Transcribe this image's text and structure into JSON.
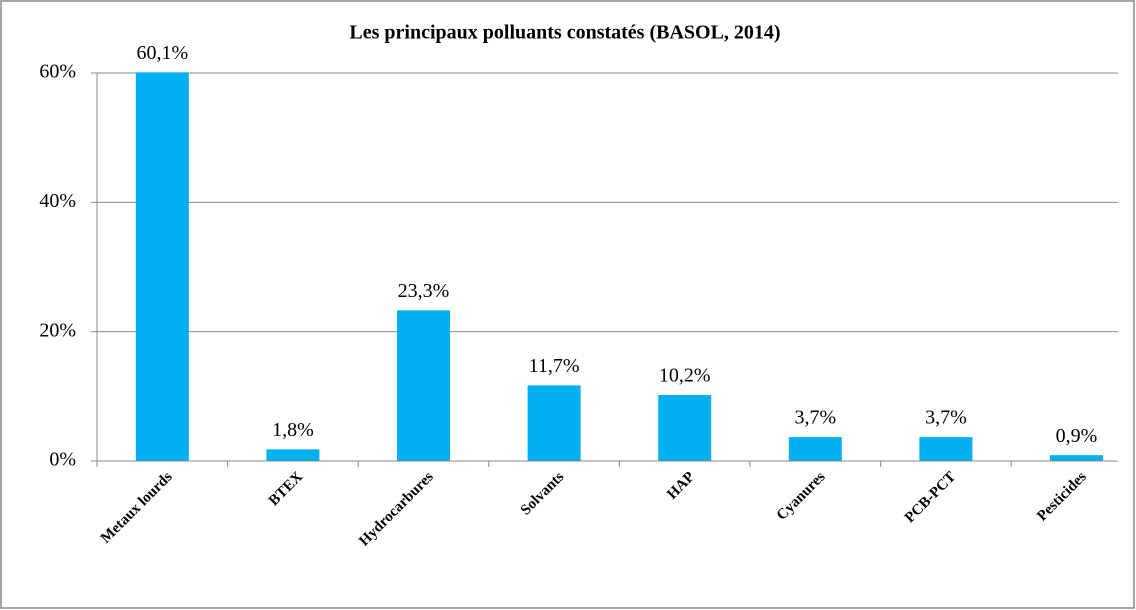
{
  "chart_data": {
    "type": "bar",
    "title": "Les principaux polluants constatés (BASOL, 2014)",
    "categories": [
      "Metaux lourds",
      "BTEX",
      "Hydrocarbures",
      "Solvants",
      "HAP",
      "Cyanures",
      "PCB-PCT",
      "Pesticides"
    ],
    "values": [
      60.1,
      1.8,
      23.3,
      11.7,
      10.2,
      3.7,
      3.7,
      0.9
    ],
    "value_labels": [
      "60,1%",
      "1,8%",
      "23,3%",
      "11,7%",
      "10,2%",
      "3,7%",
      "3,7%",
      "0,9%"
    ],
    "color": "#00b0f0",
    "ylim": [
      0,
      60
    ],
    "yticks": [
      {
        "value": 0,
        "label": "0%"
      },
      {
        "value": 20,
        "label": "20%"
      },
      {
        "value": 40,
        "label": "40%"
      },
      {
        "value": 60,
        "label": "60%"
      }
    ],
    "grid": true
  }
}
